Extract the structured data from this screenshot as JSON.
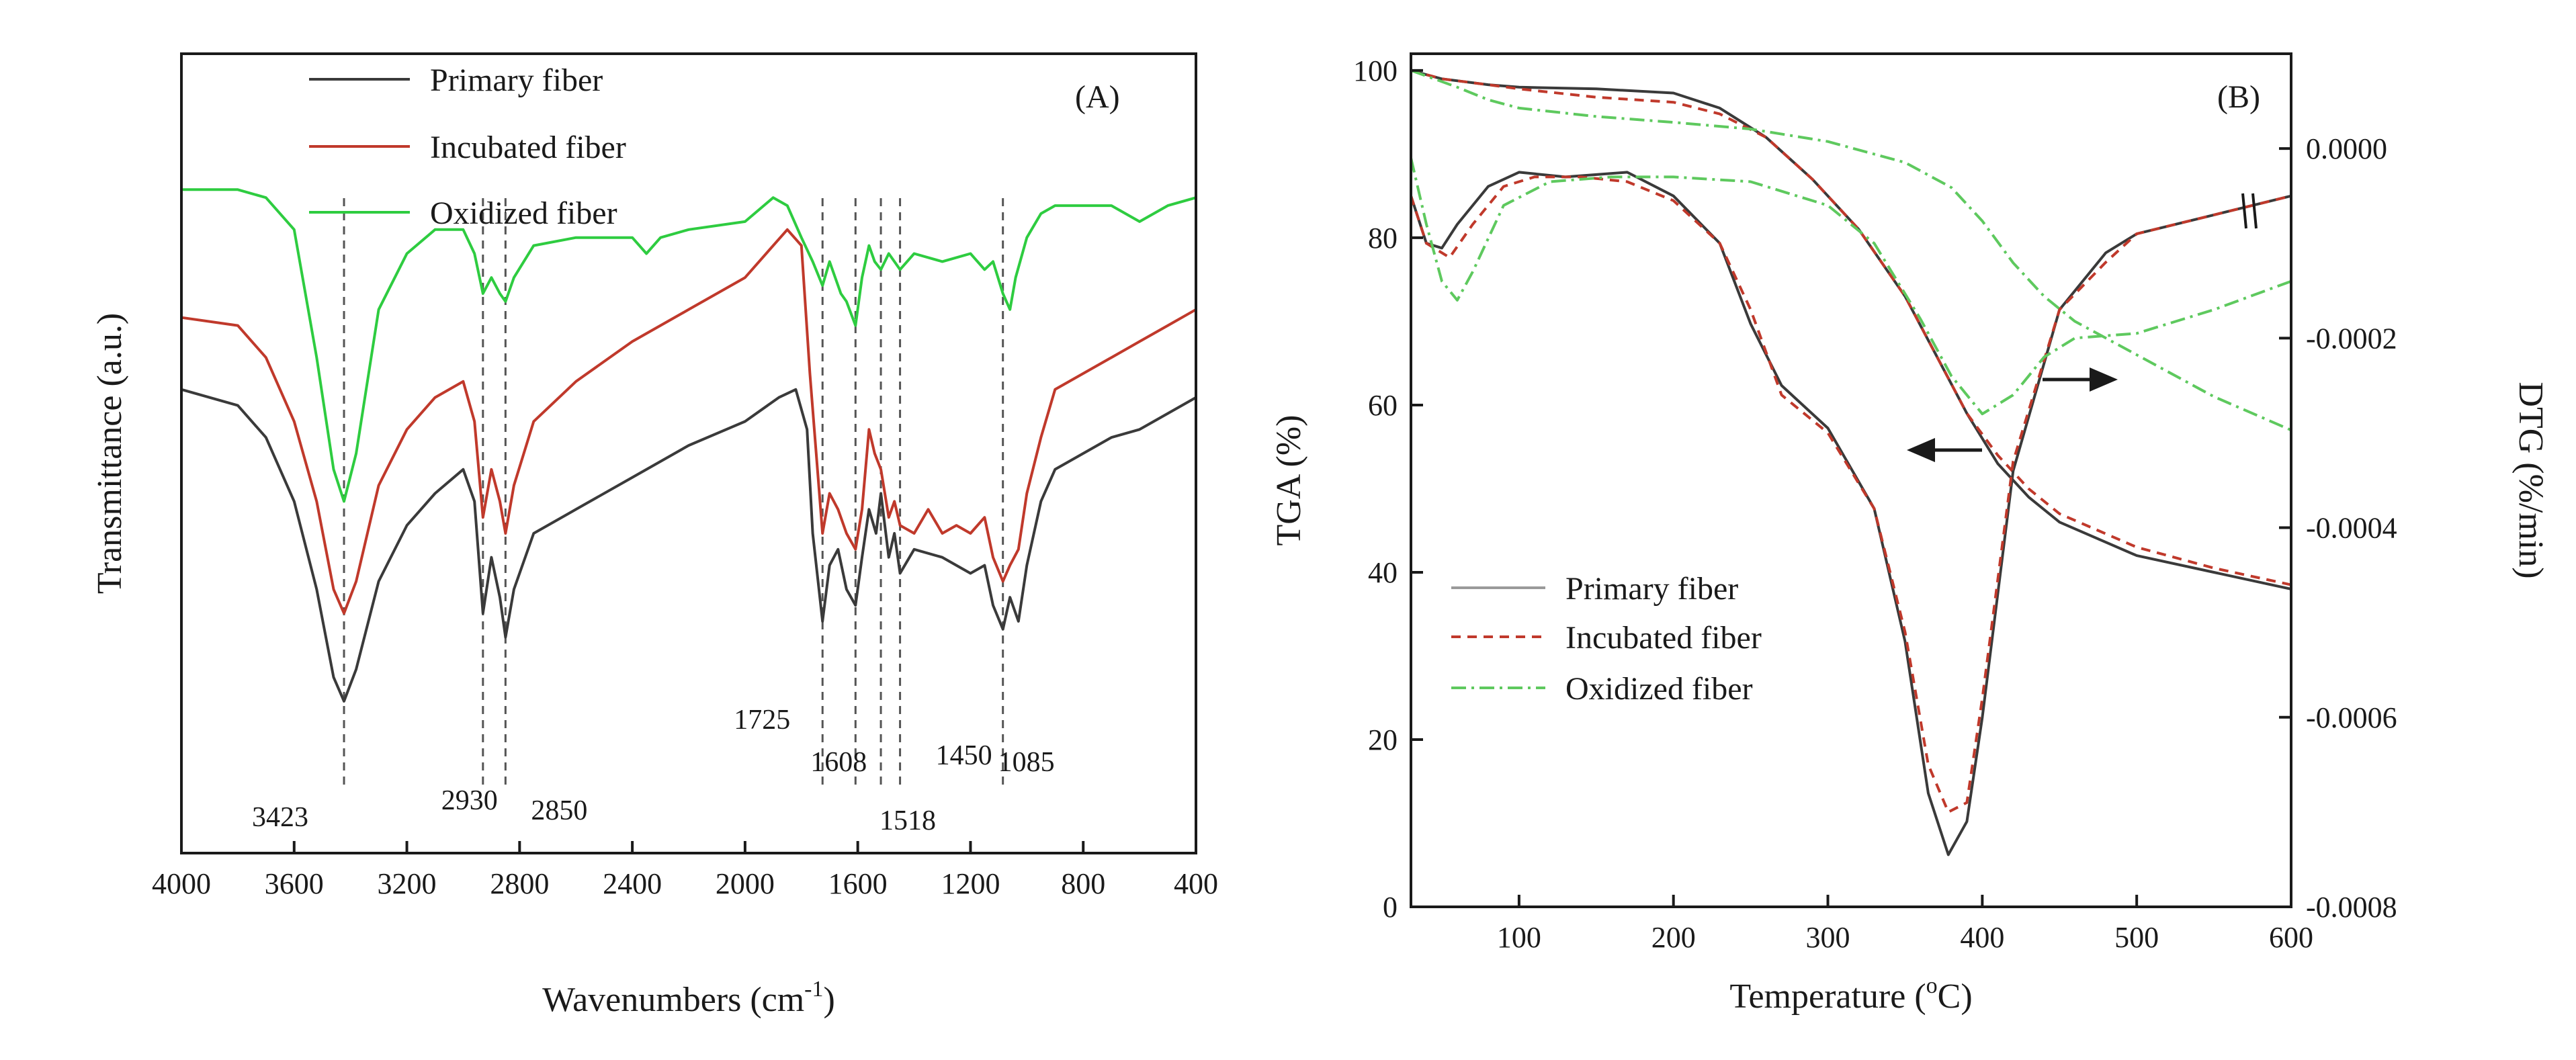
{
  "colors": {
    "primary": "#3a3a3a",
    "incubated": "#c0392b",
    "oxidized": "#2ecc40",
    "oxidized_tg": "#5ec95e",
    "axis": "#1a1a1a"
  },
  "chart_data": [
    {
      "type": "line",
      "panel": "(A)",
      "title": "",
      "xlabel": "Wavenumbers (cm",
      "xlabel_sup": "-1",
      "xlabel_end": ")",
      "ylabel": "Transmittance (a.u.)",
      "xlim": [
        4000,
        400
      ],
      "x_reversed": true,
      "ylim": [
        0,
        100
      ],
      "y_ticks_visible": false,
      "xticks": [
        4000,
        3600,
        3200,
        2800,
        2400,
        2000,
        1600,
        1200,
        800,
        400
      ],
      "xtick_labels": [
        "4000",
        "3600",
        "3200",
        "2800",
        "2400",
        "2000",
        "1600",
        "1200",
        "800",
        "400"
      ],
      "legend": [
        "Primary fiber",
        "Incubated fiber",
        "Oxidized fiber"
      ],
      "legend_position": "top-left",
      "peak_labels": [
        {
          "text": "3423",
          "x": 3423
        },
        {
          "text": "2930",
          "x": 2930
        },
        {
          "text": "2850",
          "x": 2850
        },
        {
          "text": "1725",
          "x": 1725
        },
        {
          "text": "1608",
          "x": 1608
        },
        {
          "text": "1518",
          "x": 1518
        },
        {
          "text": "1450",
          "x": 1450
        },
        {
          "text": "1085",
          "x": 1085
        }
      ],
      "series": [
        {
          "name": "Primary fiber",
          "x": [
            4000,
            3800,
            3700,
            3600,
            3520,
            3460,
            3423,
            3380,
            3300,
            3200,
            3100,
            3000,
            2960,
            2930,
            2900,
            2870,
            2850,
            2820,
            2750,
            2600,
            2400,
            2200,
            2000,
            1880,
            1820,
            1780,
            1760,
            1725,
            1700,
            1670,
            1640,
            1608,
            1585,
            1560,
            1535,
            1518,
            1490,
            1470,
            1450,
            1400,
            1300,
            1200,
            1150,
            1120,
            1085,
            1060,
            1030,
            1000,
            950,
            900,
            800,
            700,
            600,
            500,
            400
          ],
          "y": [
            58,
            56,
            52,
            44,
            33,
            22,
            19,
            23,
            34,
            41,
            45,
            48,
            44,
            30,
            37,
            32,
            27,
            33,
            40,
            43,
            47,
            51,
            54,
            57,
            58,
            53,
            40,
            29,
            36,
            38,
            33,
            31,
            37,
            43,
            40,
            45,
            37,
            40,
            35,
            38,
            37,
            35,
            36,
            31,
            28,
            32,
            29,
            36,
            44,
            48,
            50,
            52,
            53,
            55,
            57
          ]
        },
        {
          "name": "Incubated fiber",
          "x": [
            4000,
            3800,
            3700,
            3600,
            3520,
            3460,
            3423,
            3380,
            3300,
            3200,
            3100,
            3000,
            2960,
            2930,
            2900,
            2870,
            2850,
            2820,
            2750,
            2600,
            2400,
            2200,
            2000,
            1900,
            1850,
            1800,
            1770,
            1725,
            1700,
            1670,
            1640,
            1608,
            1585,
            1560,
            1540,
            1518,
            1490,
            1470,
            1450,
            1400,
            1350,
            1300,
            1250,
            1200,
            1150,
            1120,
            1085,
            1060,
            1030,
            1000,
            950,
            900,
            800,
            700,
            600,
            500,
            400
          ],
          "y": [
            67,
            66,
            62,
            54,
            44,
            33,
            30,
            34,
            46,
            53,
            57,
            59,
            54,
            42,
            48,
            44,
            40,
            46,
            54,
            59,
            64,
            68,
            72,
            76,
            78,
            76,
            60,
            40,
            45,
            43,
            40,
            38,
            43,
            53,
            50,
            48,
            42,
            44,
            41,
            40,
            43,
            40,
            41,
            40,
            42,
            37,
            34,
            36,
            38,
            45,
            52,
            58,
            60,
            62,
            64,
            66,
            68
          ]
        },
        {
          "name": "Oxidized fiber",
          "x": [
            4000,
            3800,
            3700,
            3600,
            3520,
            3460,
            3423,
            3380,
            3300,
            3200,
            3100,
            3000,
            2960,
            2930,
            2900,
            2870,
            2850,
            2820,
            2750,
            2600,
            2400,
            2350,
            2300,
            2200,
            2000,
            1900,
            1850,
            1800,
            1760,
            1725,
            1700,
            1660,
            1640,
            1608,
            1585,
            1560,
            1540,
            1518,
            1490,
            1470,
            1450,
            1400,
            1300,
            1200,
            1150,
            1120,
            1085,
            1060,
            1040,
            1000,
            950,
            900,
            800,
            700,
            600,
            500,
            400
          ],
          "y": [
            83,
            83,
            82,
            78,
            62,
            48,
            44,
            50,
            68,
            75,
            78,
            78,
            75,
            70,
            72,
            70,
            69,
            72,
            76,
            77,
            77,
            75,
            77,
            78,
            79,
            82,
            81,
            77,
            74,
            71,
            74,
            70,
            69,
            66,
            72,
            76,
            74,
            73,
            75,
            74,
            73,
            75,
            74,
            75,
            73,
            74,
            70,
            68,
            72,
            77,
            80,
            81,
            81,
            81,
            79,
            81,
            82
          ]
        }
      ]
    },
    {
      "type": "line",
      "panel": "(B)",
      "title": "",
      "xlabel": "Temperature (",
      "xlabel_sup": "o",
      "xlabel_end": "C)",
      "ylabel": "TGA (%)",
      "ylabel_right": "DTG (%/min)",
      "xlim": [
        30,
        600
      ],
      "ylim": [
        0,
        102
      ],
      "ylim_right": [
        -0.0008,
        0.0001
      ],
      "xticks": [
        100,
        200,
        300,
        400,
        500,
        600
      ],
      "xtick_labels": [
        "100",
        "200",
        "300",
        "400",
        "500",
        "600"
      ],
      "yticks": [
        0,
        20,
        40,
        60,
        80,
        100
      ],
      "ytick_labels": [
        "0",
        "20",
        "40",
        "60",
        "80",
        "100"
      ],
      "yticks_right": [
        -0.0008,
        -0.0006,
        -0.0004,
        -0.0002,
        0.0
      ],
      "ytick_labels_right": [
        "-0.0008",
        "-0.0006",
        "-0.0004",
        "-0.0002",
        "0.0000"
      ],
      "legend": [
        "Primary fiber",
        "Incubated fiber",
        "Oxidized fiber"
      ],
      "legend_position": "bottom-left",
      "annotations": [
        "arrow pointing left toward TGA axis",
        "arrow pointing right toward DTG axis"
      ],
      "series": [
        {
          "name": "Primary fiber TGA",
          "axis": "left",
          "style": "solid",
          "x": [
            30,
            50,
            80,
            100,
            150,
            200,
            230,
            260,
            290,
            320,
            350,
            370,
            390,
            410,
            430,
            450,
            500,
            550,
            600
          ],
          "y": [
            100,
            99,
            98.3,
            98,
            97.8,
            97.3,
            95.5,
            92,
            87,
            81,
            73,
            66,
            59,
            53,
            49,
            46,
            42,
            40,
            38
          ]
        },
        {
          "name": "Incubated fiber TGA",
          "axis": "left",
          "style": "dashed",
          "x": [
            30,
            50,
            80,
            100,
            150,
            200,
            230,
            260,
            290,
            320,
            350,
            370,
            390,
            410,
            430,
            450,
            500,
            550,
            600
          ],
          "y": [
            100,
            99,
            98.3,
            97.8,
            96.8,
            96.2,
            94.8,
            92,
            87,
            81,
            73,
            66,
            59,
            54,
            50,
            47,
            43,
            40.5,
            38.5
          ]
        },
        {
          "name": "Oxidized fiber TGA",
          "axis": "left",
          "style": "dashdot",
          "x": [
            30,
            60,
            80,
            100,
            150,
            200,
            250,
            300,
            350,
            380,
            400,
            420,
            440,
            460,
            480,
            500,
            550,
            600
          ],
          "y": [
            100,
            98,
            96.5,
            95.5,
            94.5,
            93.8,
            93,
            91.5,
            89,
            86,
            82,
            77,
            73,
            70,
            68,
            66,
            61,
            57
          ]
        },
        {
          "name": "Primary fiber DTG",
          "axis": "right",
          "style": "solid",
          "x": [
            30,
            40,
            50,
            60,
            80,
            100,
            130,
            170,
            200,
            230,
            250,
            270,
            300,
            330,
            350,
            365,
            378,
            390,
            400,
            420,
            450,
            480,
            500,
            550,
            600
          ],
          "y": [
            -5e-05,
            -0.0001,
            -0.000105,
            -8e-05,
            -4e-05,
            -2.5e-05,
            -3e-05,
            -2.5e-05,
            -5e-05,
            -0.0001,
            -0.000185,
            -0.00025,
            -0.000295,
            -0.00038,
            -0.00052,
            -0.00068,
            -0.000745,
            -0.00071,
            -0.0006,
            -0.00034,
            -0.00017,
            -0.00011,
            -9e-05,
            -7e-05,
            -5e-05
          ]
        },
        {
          "name": "Incubated fiber DTG",
          "axis": "right",
          "style": "dashed",
          "x": [
            30,
            40,
            55,
            70,
            90,
            110,
            140,
            170,
            200,
            230,
            250,
            270,
            300,
            330,
            350,
            365,
            378,
            390,
            400,
            420,
            450,
            480,
            500,
            550,
            600
          ],
          "y": [
            -5e-05,
            -0.0001,
            -0.000115,
            -8e-05,
            -4e-05,
            -3e-05,
            -3e-05,
            -3.5e-05,
            -5.5e-05,
            -0.0001,
            -0.00017,
            -0.00026,
            -0.0003,
            -0.00038,
            -0.00051,
            -0.00065,
            -0.0007,
            -0.00069,
            -0.00058,
            -0.00033,
            -0.00017,
            -0.00012,
            -9e-05,
            -7e-05,
            -5e-05
          ]
        },
        {
          "name": "Oxidized fiber DTG",
          "axis": "right",
          "style": "dashdot",
          "x": [
            30,
            40,
            50,
            60,
            70,
            90,
            120,
            160,
            200,
            250,
            300,
            330,
            360,
            380,
            400,
            420,
            440,
            460,
            500,
            550,
            600
          ],
          "y": [
            -1e-05,
            -8e-05,
            -0.00014,
            -0.00016,
            -0.00013,
            -6e-05,
            -3.5e-05,
            -3e-05,
            -3e-05,
            -3.5e-05,
            -6e-05,
            -0.0001,
            -0.00018,
            -0.00024,
            -0.00028,
            -0.00026,
            -0.00022,
            -0.0002,
            -0.000195,
            -0.00017,
            -0.00014
          ]
        }
      ]
    }
  ]
}
